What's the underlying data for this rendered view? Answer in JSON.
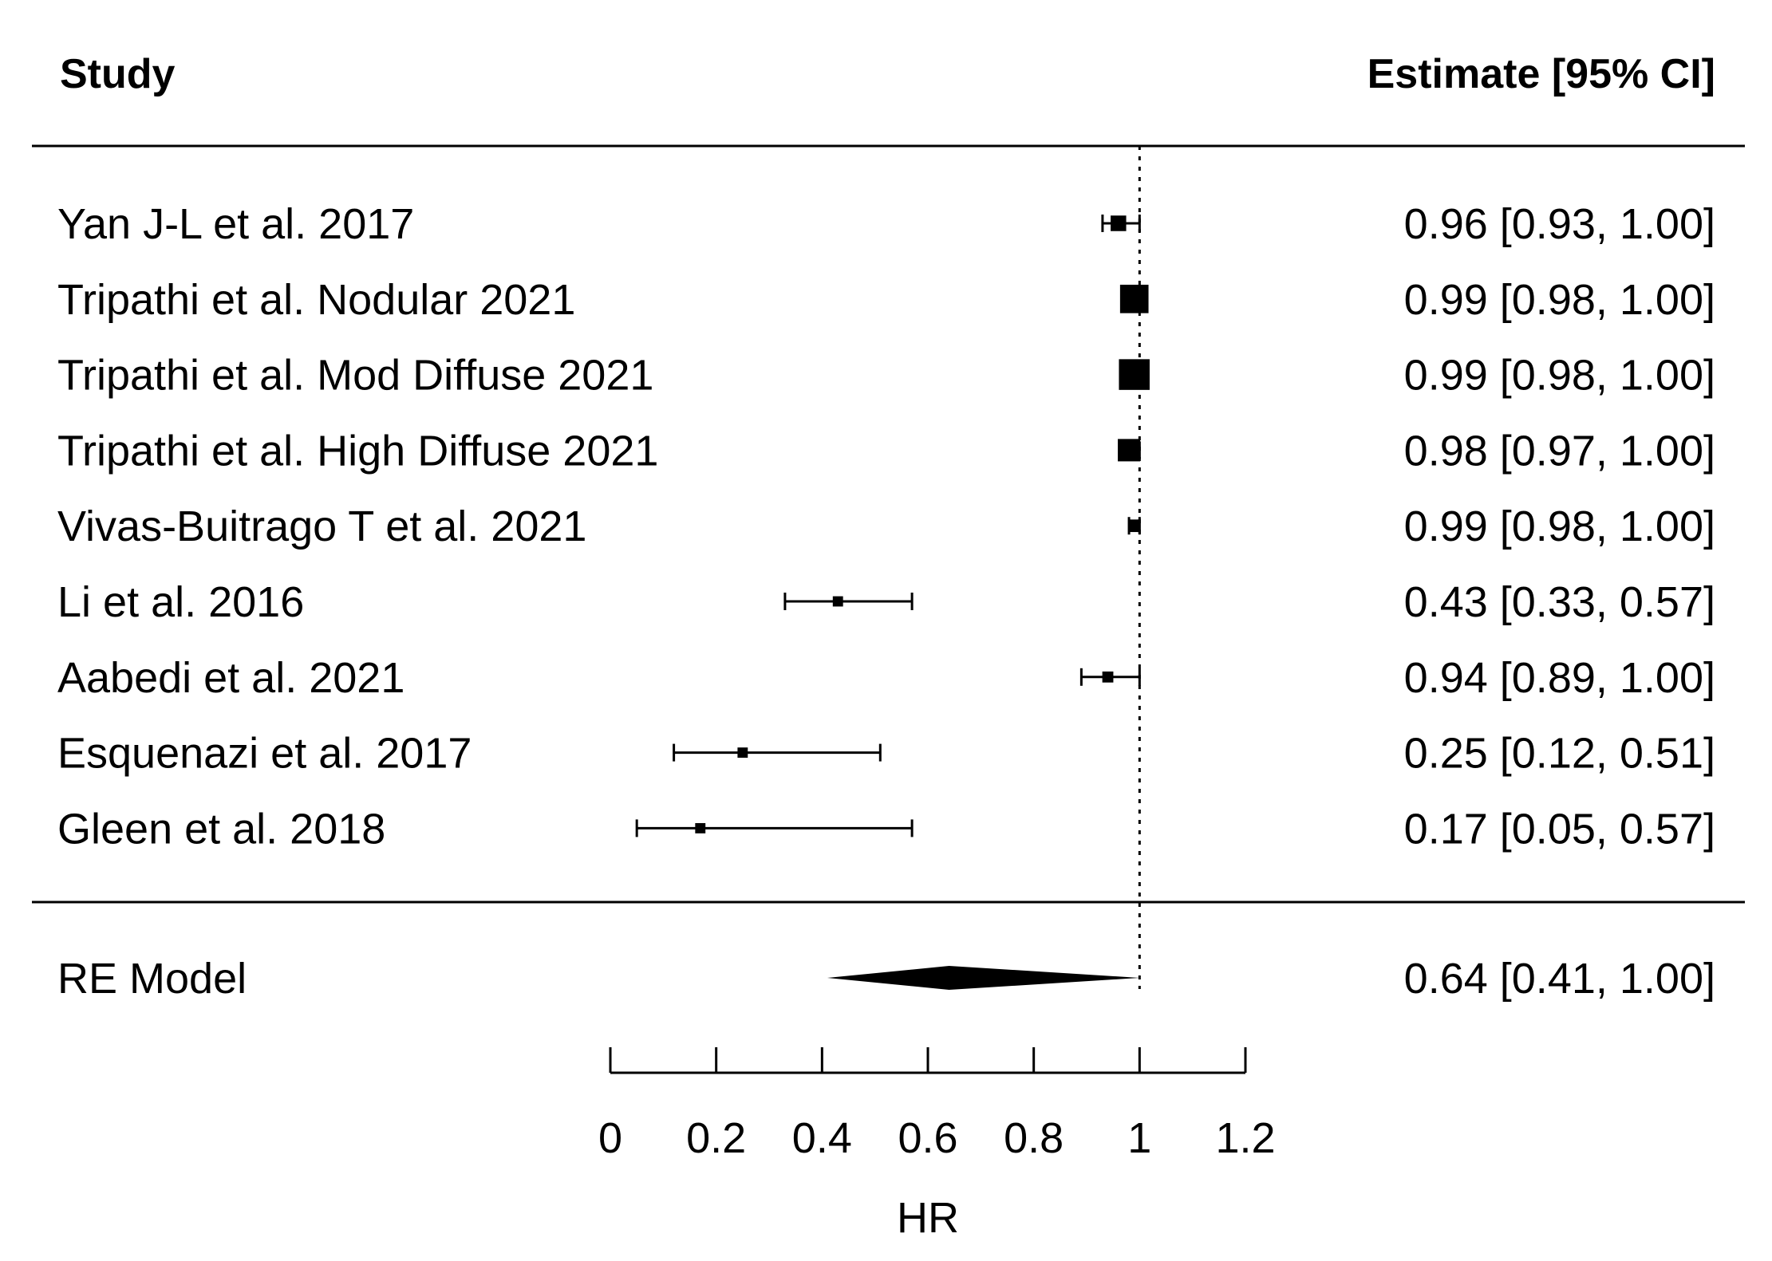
{
  "chart_data": {
    "type": "forest",
    "header": {
      "left": "Study",
      "right": "Estimate [95% CI]"
    },
    "studies": [
      {
        "name": "Yan J-L et al. 2017",
        "estimate": 0.96,
        "lower": 0.93,
        "upper": 1.0,
        "label": "0.96 [0.93, 1.00]",
        "weight": 0.1
      },
      {
        "name": "Tripathi et al. Nodular 2021",
        "estimate": 0.99,
        "lower": 0.98,
        "upper": 1.0,
        "label": "0.99 [0.98, 1.00]",
        "weight": 0.27
      },
      {
        "name": "Tripathi et al. Mod Diffuse 2021",
        "estimate": 0.99,
        "lower": 0.98,
        "upper": 1.0,
        "label": "0.99 [0.98, 1.00]",
        "weight": 0.3
      },
      {
        "name": "Tripathi et al. High Diffuse 2021",
        "estimate": 0.98,
        "lower": 0.97,
        "upper": 1.0,
        "label": "0.98 [0.97, 1.00]",
        "weight": 0.19
      },
      {
        "name": "Vivas-Buitrago T et al. 2021",
        "estimate": 0.99,
        "lower": 0.98,
        "upper": 1.0,
        "label": "0.99 [0.98, 1.00]",
        "weight": 0.06
      },
      {
        "name": "Li et al. 2016",
        "estimate": 0.43,
        "lower": 0.33,
        "upper": 0.57,
        "label": "0.43 [0.33, 0.57]",
        "weight": 0.03
      },
      {
        "name": "Aabedi et al. 2021",
        "estimate": 0.94,
        "lower": 0.89,
        "upper": 1.0,
        "label": "0.94 [0.89, 1.00]",
        "weight": 0.04
      },
      {
        "name": "Esquenazi et al. 2017",
        "estimate": 0.25,
        "lower": 0.12,
        "upper": 0.51,
        "label": "0.25 [0.12, 0.51]",
        "weight": 0.03
      },
      {
        "name": "Gleen et al. 2018",
        "estimate": 0.17,
        "lower": 0.05,
        "upper": 0.57,
        "label": "0.17 [0.05, 0.57]",
        "weight": 0.03
      }
    ],
    "summary": {
      "name": "RE Model",
      "estimate": 0.64,
      "lower": 0.41,
      "upper": 1.0,
      "label": "0.64 [0.41, 1.00]"
    },
    "reference_line": 1,
    "xlim": [
      0,
      1.2
    ],
    "xticks": [
      "0",
      "0.2",
      "0.4",
      "0.6",
      "0.8",
      "1",
      "1.2"
    ],
    "xlabel": "HR"
  }
}
